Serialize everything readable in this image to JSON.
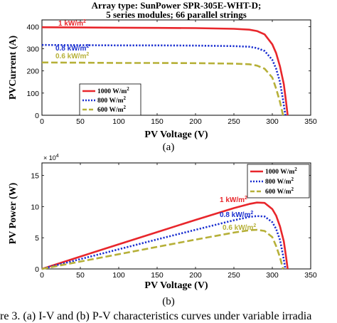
{
  "chart_data": [
    {
      "type": "line",
      "title": "Array type: SunPower SPR-305E-WHT-D; 5 series modules; 66 parallel strings",
      "title_lines": [
        "Array type: SunPower SPR-305E-WHT-D;",
        "5 series modules; 66 parallel strings"
      ],
      "xlabel": "PV Voltage (V)",
      "ylabel": "PVCurrent (A)",
      "xlim": [
        0,
        350
      ],
      "ylim": [
        0,
        430
      ],
      "xticks": [
        "0",
        "50",
        "100",
        "150",
        "200",
        "250",
        "300",
        "350"
      ],
      "yticks": [
        "0",
        "100",
        "200",
        "300",
        "400"
      ],
      "grid": false,
      "legend_position": "bottom-left",
      "series": [
        {
          "name": "1000 W/m2",
          "color": "#e8262b",
          "style": "solid",
          "annotation": "1 kW/m2",
          "x": [
            0,
            50,
            100,
            150,
            200,
            250,
            270,
            280,
            290,
            300,
            305,
            310,
            315,
            318,
            320
          ],
          "y": [
            397,
            396,
            395,
            394,
            393,
            390,
            386,
            380,
            365,
            320,
            280,
            220,
            140,
            60,
            0
          ]
        },
        {
          "name": "800 W/m2",
          "color": "#1a2fd0",
          "style": "dotted",
          "annotation": "0.8 kW/m2",
          "x": [
            0,
            50,
            100,
            150,
            200,
            250,
            270,
            280,
            290,
            300,
            305,
            310,
            314,
            317
          ],
          "y": [
            317,
            316,
            315,
            315,
            314,
            312,
            309,
            303,
            290,
            250,
            210,
            150,
            70,
            0
          ]
        },
        {
          "name": "600 W/m2",
          "color": "#b6b038",
          "style": "dashed",
          "annotation": "0.6 kW/m2",
          "x": [
            0,
            50,
            100,
            150,
            200,
            250,
            270,
            280,
            290,
            300,
            305,
            310,
            314
          ],
          "y": [
            238,
            237,
            236,
            236,
            235,
            233,
            230,
            224,
            210,
            170,
            120,
            60,
            0
          ]
        }
      ]
    },
    {
      "type": "line",
      "title": "",
      "xlabel": "PV Voltage (V)",
      "ylabel": "PV Power (W)",
      "xlim": [
        0,
        350
      ],
      "ylim": [
        0,
        17
      ],
      "y_exponent": "× 10^4",
      "xticks": [
        "0",
        "50",
        "100",
        "150",
        "200",
        "250",
        "300",
        "350"
      ],
      "yticks": [
        "0",
        "5",
        "10",
        "15"
      ],
      "grid": false,
      "legend_position": "top-right",
      "series": [
        {
          "name": "1000 W/m2",
          "color": "#e8262b",
          "style": "solid",
          "annotation": "1 kW/m2",
          "x": [
            0,
            50,
            100,
            150,
            200,
            250,
            270,
            280,
            290,
            300,
            305,
            310,
            315,
            318,
            320
          ],
          "y": [
            0,
            1.98,
            3.95,
            5.91,
            7.86,
            9.75,
            10.42,
            10.64,
            10.59,
            9.6,
            8.54,
            6.82,
            4.41,
            1.91,
            0
          ]
        },
        {
          "name": "800 W/m2",
          "color": "#1a2fd0",
          "style": "dotted",
          "annotation": "0.8 kW/m2",
          "x": [
            0,
            50,
            100,
            150,
            200,
            250,
            270,
            280,
            290,
            300,
            305,
            310,
            314,
            317
          ],
          "y": [
            0,
            1.58,
            3.15,
            4.73,
            6.28,
            7.8,
            8.34,
            8.48,
            8.41,
            7.5,
            6.41,
            4.65,
            2.2,
            0
          ]
        },
        {
          "name": "600 W/m2",
          "color": "#b6b038",
          "style": "dashed",
          "annotation": "0.6 kW/m2",
          "x": [
            0,
            50,
            100,
            150,
            200,
            250,
            270,
            280,
            290,
            300,
            305,
            310,
            314
          ],
          "y": [
            0,
            1.19,
            2.36,
            3.54,
            4.7,
            5.83,
            6.21,
            6.27,
            6.09,
            5.1,
            3.66,
            1.86,
            0
          ]
        }
      ]
    }
  ],
  "labels": {
    "sub_a": "(a)",
    "sub_b": "(b)",
    "caption": "re 3. (a) I-V and (b) P-V characteristics curves under variable irradia",
    "legend_sup": "2",
    "legend_base": [
      "1000 W/m",
      "800 W/m",
      "600 W/m"
    ],
    "ann_base": [
      "1 kW/m",
      "0.8 kW/m",
      "0.6 kW/m"
    ],
    "exp_base": "× 10",
    "exp_power": "4"
  }
}
